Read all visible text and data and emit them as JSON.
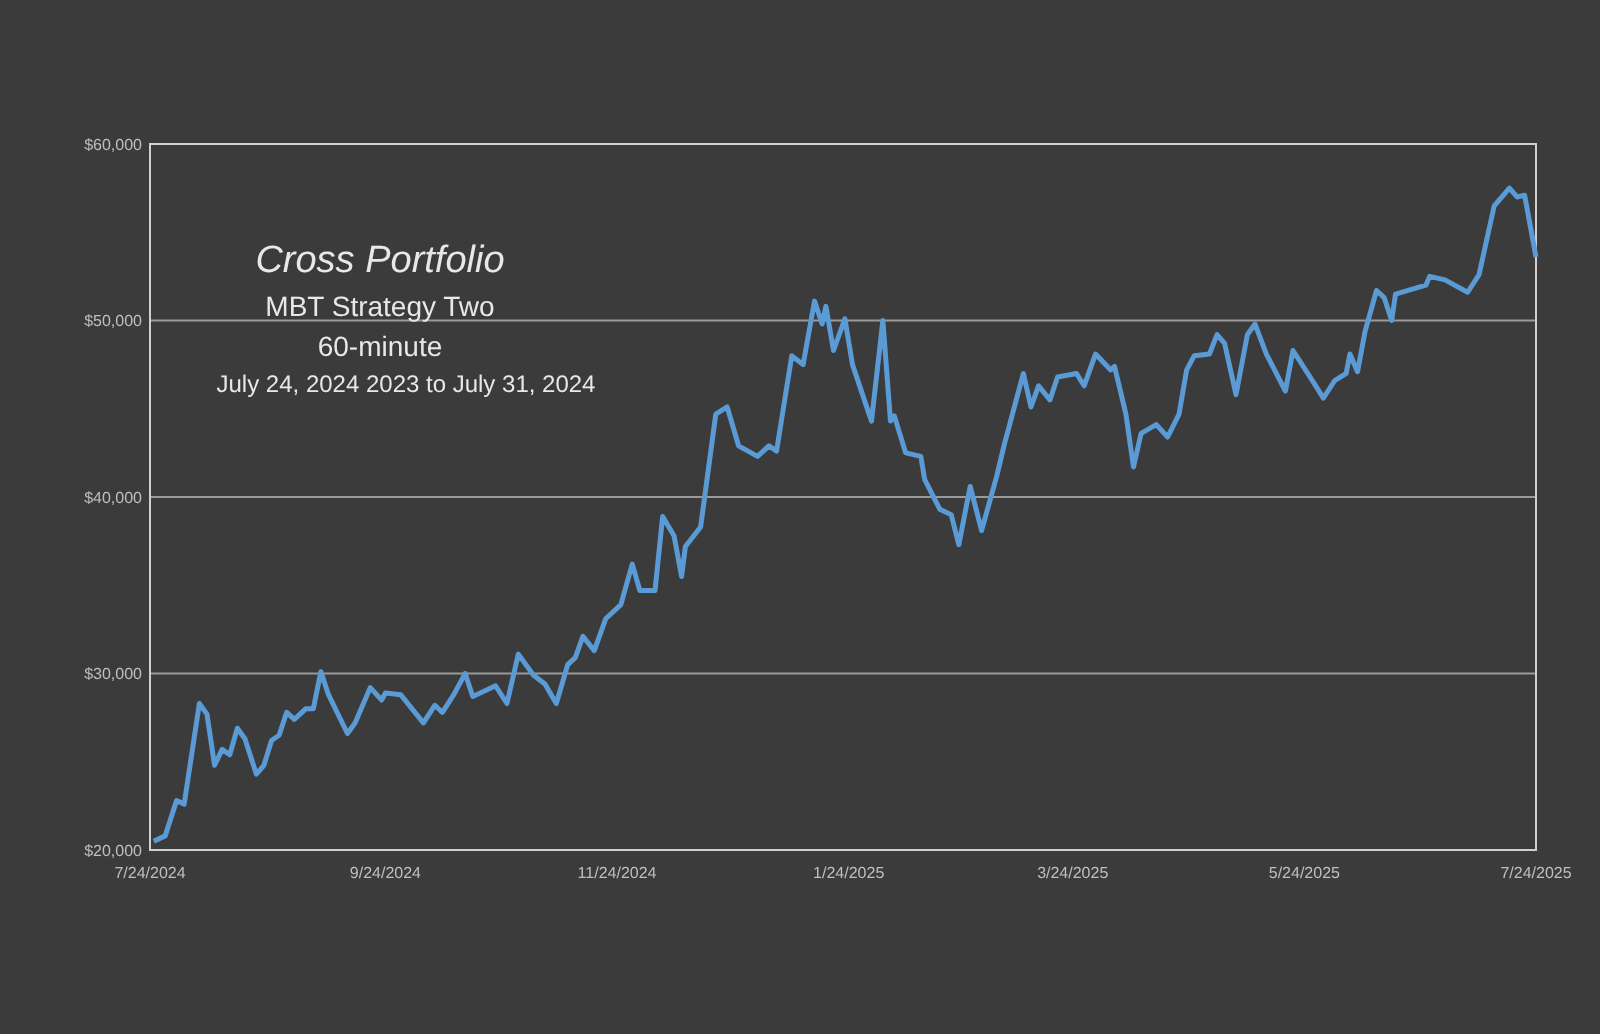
{
  "chart_data": {
    "type": "line",
    "title": "Cross Portfolio",
    "subtitle": "MBT Strategy Two",
    "annotations": [
      "60-minute",
      "July 24, 2024  2023 to July 31, 2024"
    ],
    "x": [
      "2024-07-25",
      "2024-07-28",
      "2024-07-31",
      "2024-08-02",
      "2024-08-06",
      "2024-08-08",
      "2024-08-10",
      "2024-08-12",
      "2024-08-14",
      "2024-08-16",
      "2024-08-18",
      "2024-08-21",
      "2024-08-23",
      "2024-08-25",
      "2024-08-27",
      "2024-08-29",
      "2024-08-31",
      "2024-09-03",
      "2024-09-05",
      "2024-09-07",
      "2024-09-09",
      "2024-09-14",
      "2024-09-16",
      "2024-09-20",
      "2024-09-23",
      "2024-09-24",
      "2024-09-28",
      "2024-10-04",
      "2024-10-07",
      "2024-10-09",
      "2024-10-12",
      "2024-10-15",
      "2024-10-17",
      "2024-10-23",
      "2024-10-26",
      "2024-10-29",
      "2024-11-02",
      "2024-11-05",
      "2024-11-08",
      "2024-11-11",
      "2024-11-13",
      "2024-11-15",
      "2024-11-18",
      "2024-11-21",
      "2024-11-25",
      "2024-11-28",
      "2024-11-30",
      "2024-12-04",
      "2024-12-06",
      "2024-12-09",
      "2024-12-11",
      "2024-12-12",
      "2024-12-16",
      "2024-12-20",
      "2024-12-23",
      "2024-12-26",
      "2024-12-31",
      "2025-01-03",
      "2025-01-05",
      "2025-01-09",
      "2025-01-12",
      "2025-01-15",
      "2025-01-17",
      "2025-01-18",
      "2025-01-20",
      "2025-01-23",
      "2025-01-25",
      "2025-01-30",
      "2025-02-02",
      "2025-02-04",
      "2025-02-05",
      "2025-02-08",
      "2025-02-12",
      "2025-02-13",
      "2025-02-17",
      "2025-02-20",
      "2025-02-22",
      "2025-02-25",
      "2025-02-28",
      "2025-03-04",
      "2025-03-06",
      "2025-03-11",
      "2025-03-13",
      "2025-03-15",
      "2025-03-18",
      "2025-03-20",
      "2025-03-25",
      "2025-03-27",
      "2025-03-30",
      "2025-04-03",
      "2025-04-04",
      "2025-04-07",
      "2025-04-09",
      "2025-04-11",
      "2025-04-15",
      "2025-04-18",
      "2025-04-21",
      "2025-04-23",
      "2025-04-25",
      "2025-04-29",
      "2025-05-01",
      "2025-05-03",
      "2025-05-06",
      "2025-05-09",
      "2025-05-11",
      "2025-05-14",
      "2025-05-19",
      "2025-05-21",
      "2025-05-27",
      "2025-05-29",
      "2025-06-01",
      "2025-06-04",
      "2025-06-05",
      "2025-06-07",
      "2025-06-09",
      "2025-06-12",
      "2025-06-14",
      "2025-06-16",
      "2025-06-17",
      "2025-06-25",
      "2025-06-26",
      "2025-06-30",
      "2025-07-06",
      "2025-07-09",
      "2025-07-13",
      "2025-07-17",
      "2025-07-19",
      "2025-07-21",
      "2025-07-24"
    ],
    "series": [
      {
        "color": "#5b9bd5",
        "values": [
          20500,
          20800,
          22800,
          22600,
          28300,
          27700,
          24800,
          25700,
          25400,
          26900,
          26300,
          24300,
          24800,
          26200,
          26500,
          27800,
          27400,
          28000,
          28000,
          30100,
          28800,
          26600,
          27200,
          29200,
          28500,
          28900,
          28800,
          27200,
          28200,
          27800,
          28800,
          30000,
          28700,
          29300,
          28300,
          31100,
          29900,
          29400,
          28300,
          30500,
          30900,
          32100,
          31300,
          33100,
          33900,
          36200,
          34700,
          34700,
          38900,
          37800,
          35500,
          37200,
          38300,
          44700,
          45100,
          42900,
          42300,
          42900,
          42600,
          48000,
          47500,
          51100,
          49800,
          50800,
          48300,
          50100,
          47500,
          44300,
          50000,
          44300,
          44600,
          42500,
          42300,
          41000,
          39300,
          39000,
          37300,
          40600,
          38100,
          41200,
          43000,
          47000,
          45100,
          46300,
          45500,
          46800,
          47000,
          46300,
          48100,
          47200,
          47400,
          44700,
          41700,
          43600,
          44100,
          43400,
          44700,
          47200,
          48000,
          48100,
          49200,
          48700,
          45800,
          49200,
          49800,
          48100,
          46000,
          48300,
          46300,
          45600,
          46600,
          47000,
          48100,
          47100,
          49400,
          51700,
          51300,
          50000,
          51500,
          52000,
          52500,
          52300,
          51600,
          52600,
          56500,
          57500,
          57000,
          57100,
          53600
        ]
      }
    ],
    "xlim": [
      "2024-07-24",
      "2025-07-24"
    ],
    "xticks": [
      {
        "value": "2024-07-24",
        "label": "7/24/2024"
      },
      {
        "value": "2024-09-24",
        "label": "9/24/2024"
      },
      {
        "value": "2024-11-24",
        "label": "11/24/2024"
      },
      {
        "value": "2025-01-24",
        "label": "1/24/2025"
      },
      {
        "value": "2025-03-24",
        "label": "3/24/2025"
      },
      {
        "value": "2025-05-24",
        "label": "5/24/2025"
      },
      {
        "value": "2025-07-24",
        "label": "7/24/2025"
      }
    ],
    "ylim": [
      20000,
      60000
    ],
    "yticks": [
      {
        "value": 20000,
        "label": "$20,000"
      },
      {
        "value": 30000,
        "label": "$30,000"
      },
      {
        "value": 40000,
        "label": "$40,000"
      },
      {
        "value": 50000,
        "label": "$50,000"
      },
      {
        "value": 60000,
        "label": "$60,000"
      }
    ],
    "grid": "y",
    "marker": "none",
    "line_style": "solid"
  }
}
